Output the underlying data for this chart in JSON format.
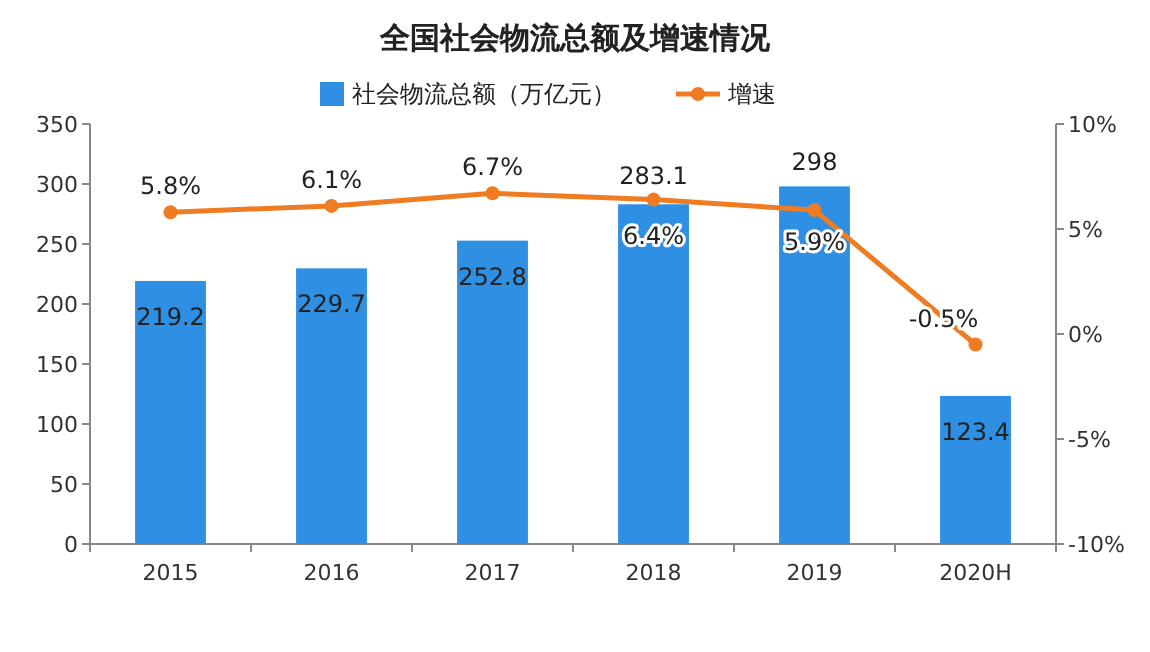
{
  "chart_data": {
    "type": "bar",
    "title": "全国社会物流总额及增速情况",
    "categories": [
      "2015",
      "2016",
      "2017",
      "2018",
      "2019",
      "2020H"
    ],
    "series": [
      {
        "name": "社会物流总额（万亿元）",
        "color": "#2f8fe3",
        "values": [
          219.2,
          229.7,
          252.8,
          283.1,
          298,
          123.4
        ],
        "value_labels": [
          "219.2",
          "229.7",
          "252.8",
          "283.1",
          "298",
          "123.4"
        ]
      },
      {
        "name": "增速",
        "type": "line",
        "axis": "y2",
        "color": "#f07c22",
        "values": [
          5.8,
          6.1,
          6.7,
          6.4,
          5.9,
          -0.5
        ],
        "value_labels": [
          "5.8%",
          "6.1%",
          "6.7%",
          "6.4%",
          "5.9%",
          "-0.5%"
        ]
      }
    ],
    "ylim": [
      0,
      350
    ],
    "yticks": [
      0,
      50,
      100,
      150,
      200,
      250,
      300,
      350
    ],
    "y2lim": [
      -10,
      10
    ],
    "y2ticks": [
      {
        "value": -10,
        "label": "-10%"
      },
      {
        "value": -5,
        "label": "-5%"
      },
      {
        "value": 0,
        "label": "0%"
      },
      {
        "value": 5,
        "label": "5%"
      },
      {
        "value": 10,
        "label": "10%"
      }
    ],
    "legend": "top",
    "marker": "circle",
    "line_style": "solid"
  }
}
